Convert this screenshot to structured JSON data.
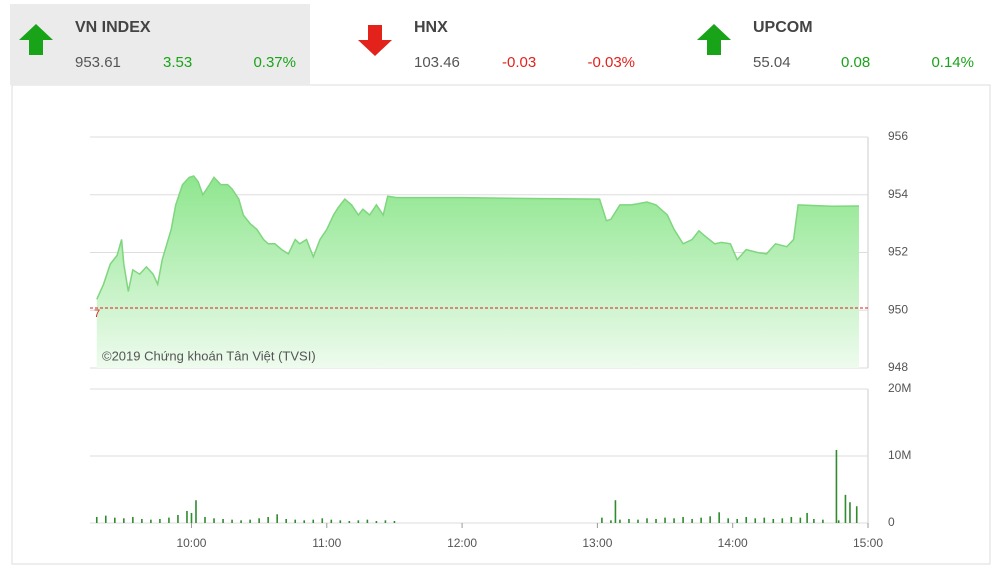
{
  "header": {
    "indices": [
      {
        "name": "VN INDEX",
        "value": "953.61",
        "change": "3.53",
        "percent": "0.37%",
        "direction": "up"
      },
      {
        "name": "HNX",
        "value": "103.46",
        "change": "-0.03",
        "percent": "-0.03%",
        "direction": "down"
      },
      {
        "name": "UPCOM",
        "value": "55.04",
        "change": "0.08",
        "percent": "0.14%",
        "direction": "up"
      }
    ]
  },
  "chart_data": [
    {
      "type": "area",
      "annotation": "©2019 Chứng khoán Tân Việt (TVSI)",
      "reference": {
        "value": 950.08,
        "label": "7",
        "color": "#d62020"
      },
      "color": "#7fd67f",
      "x": [
        558,
        561,
        564,
        567,
        569,
        570,
        572,
        574,
        577,
        580,
        583,
        585,
        587,
        591,
        593,
        596,
        599,
        601,
        603,
        605,
        608,
        610,
        613,
        616,
        618,
        621,
        623,
        626,
        629,
        632,
        634,
        637,
        640,
        643,
        646,
        648,
        651,
        654,
        657,
        660,
        663,
        665,
        668,
        671,
        674,
        676,
        679,
        682,
        685,
        687,
        691,
        720,
        750,
        781,
        784,
        786,
        790,
        795,
        802,
        806,
        811,
        814,
        818,
        822,
        825,
        828,
        832,
        835,
        839,
        842,
        846,
        851,
        855,
        859,
        864,
        867,
        869,
        884,
        896
      ],
      "values": [
        950.38,
        950.9,
        951.6,
        951.9,
        952.45,
        951.6,
        950.65,
        951.4,
        951.25,
        951.5,
        951.25,
        950.9,
        951.75,
        952.8,
        953.65,
        954.35,
        954.6,
        954.65,
        954.45,
        954.0,
        954.35,
        954.6,
        954.35,
        954.35,
        954.2,
        953.85,
        953.3,
        953.0,
        952.8,
        952.45,
        952.3,
        952.3,
        952.1,
        951.95,
        952.45,
        952.3,
        952.45,
        951.85,
        952.45,
        952.8,
        953.3,
        953.55,
        953.85,
        953.65,
        953.3,
        953.5,
        953.3,
        953.65,
        953.3,
        953.95,
        953.9,
        953.9,
        953.87,
        953.85,
        953.1,
        953.15,
        953.65,
        953.65,
        953.75,
        953.65,
        953.3,
        952.8,
        952.3,
        952.45,
        952.75,
        952.55,
        952.3,
        952.35,
        952.3,
        951.75,
        952.1,
        952.0,
        951.95,
        952.3,
        952.2,
        952.45,
        953.65,
        953.6,
        953.61
      ],
      "xlim": [
        555,
        900
      ],
      "ylim": [
        948,
        956
      ],
      "yticks": [
        948,
        950,
        952,
        954,
        956
      ],
      "grid": true
    },
    {
      "type": "bar",
      "color": "#2e8b2e",
      "x": [
        558,
        562,
        566,
        570,
        574,
        578,
        582,
        586,
        590,
        594,
        598,
        600,
        602,
        606,
        610,
        614,
        618,
        622,
        626,
        630,
        634,
        638,
        642,
        646,
        650,
        654,
        658,
        662,
        666,
        670,
        674,
        678,
        682,
        686,
        690,
        782,
        786,
        788,
        790,
        794,
        798,
        802,
        806,
        810,
        814,
        818,
        822,
        826,
        830,
        834,
        838,
        842,
        846,
        850,
        854,
        858,
        862,
        866,
        870,
        873,
        876,
        880,
        886,
        887,
        890,
        892,
        895
      ],
      "values": [
        0.9,
        1.1,
        0.8,
        0.7,
        0.9,
        0.6,
        0.5,
        0.6,
        0.8,
        1.2,
        1.8,
        1.5,
        3.4,
        0.9,
        0.7,
        0.6,
        0.5,
        0.4,
        0.5,
        0.7,
        0.9,
        1.3,
        0.6,
        0.5,
        0.4,
        0.5,
        0.7,
        0.5,
        0.4,
        0.3,
        0.4,
        0.5,
        0.3,
        0.4,
        0.3,
        0.8,
        0.4,
        3.4,
        0.5,
        0.6,
        0.5,
        0.7,
        0.6,
        0.8,
        0.7,
        0.9,
        0.6,
        0.8,
        1.0,
        1.6,
        0.7,
        0.6,
        0.9,
        0.7,
        0.8,
        0.6,
        0.7,
        0.9,
        0.8,
        1.5,
        0.6,
        0.5,
        10.9,
        0.4,
        4.2,
        3.1,
        2.5
      ],
      "xlim": [
        555,
        900
      ],
      "xticks": [
        {
          "value": 600,
          "label": "10:00"
        },
        {
          "value": 660,
          "label": "11:00"
        },
        {
          "value": 720,
          "label": "12:00"
        },
        {
          "value": 780,
          "label": "13:00"
        },
        {
          "value": 840,
          "label": "14:00"
        },
        {
          "value": 900,
          "label": "15:00"
        }
      ],
      "ylim": [
        0,
        20
      ],
      "yticks": [
        0,
        {
          "value": 10,
          "label": "10M"
        },
        {
          "value": 20,
          "label": "20M"
        }
      ],
      "grid": true
    }
  ]
}
